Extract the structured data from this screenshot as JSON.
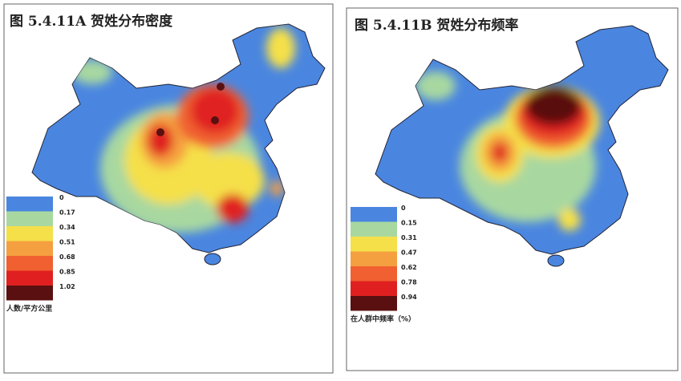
{
  "panels": [
    {
      "title": "图 5.4.11A  贺姓分布密度",
      "legend": [
        "0",
        "0.17",
        "0.34",
        "0.51",
        "0.68",
        "0.85",
        "1.02"
      ],
      "unit": "人数/平方公里"
    },
    {
      "title": "图 5.4.11B  贺姓分布频率",
      "legend": [
        "0",
        "0.15",
        "0.31",
        "0.47",
        "0.62",
        "0.78",
        "0.94"
      ],
      "unit": "在人群中频率（%）"
    }
  ]
}
